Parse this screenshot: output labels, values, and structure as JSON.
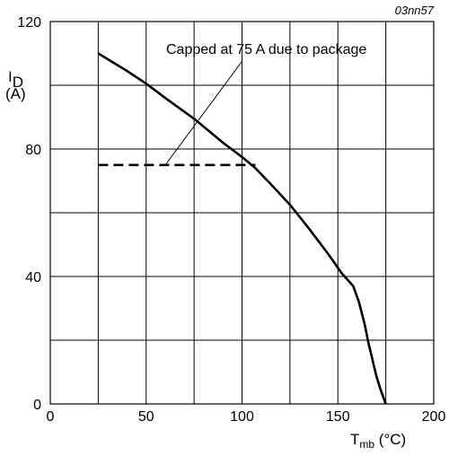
{
  "chart_data": {
    "type": "line",
    "figure_tag": "03nn57",
    "xlabel": {
      "main": "T",
      "sub": "mb",
      "unit": " (°C)"
    },
    "ylabel": {
      "main": "I",
      "sub": "D",
      "unit": "(A)"
    },
    "xlim": [
      0,
      200
    ],
    "ylim": [
      0,
      120
    ],
    "x_ticks": [
      0,
      50,
      100,
      150,
      200
    ],
    "y_ticks": [
      0,
      40,
      80,
      120
    ],
    "x_ticks_labels": [
      "0",
      "50",
      "100",
      "150",
      "200"
    ],
    "y_ticks_labels": [
      "0",
      "40",
      "80",
      "120"
    ],
    "grid": true,
    "x_grid_step": 25,
    "y_grid_step": 20,
    "series": [
      {
        "style": "solid",
        "x": [
          25,
          40,
          50,
          60,
          75,
          90,
          100,
          107,
          115,
          125,
          135,
          145,
          152,
          158,
          161,
          164,
          166,
          168,
          170,
          172,
          175
        ],
        "y": [
          110,
          104.5,
          100.5,
          96,
          89.5,
          82,
          77.5,
          74,
          69,
          62.5,
          55,
          47,
          41,
          37,
          32,
          25,
          19,
          14,
          9,
          5,
          0
        ]
      },
      {
        "style": "dashed",
        "x": [
          25,
          107
        ],
        "y": [
          75,
          75
        ]
      }
    ],
    "annotation": {
      "text": "Capped at 75 A due to package",
      "pointer_from": [
        100,
        107.5
      ],
      "pointer_to": [
        60,
        75
      ]
    }
  }
}
